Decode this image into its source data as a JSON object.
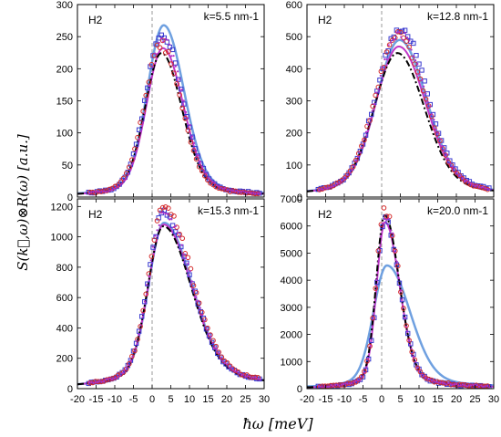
{
  "figure": {
    "ylabel": "S(k⃗,ω)⊗R(ω) [a.u.]",
    "xlabel": "ħω [meV]"
  },
  "colors": {
    "blue_squares": "#3a3ad0",
    "red_circles": "#d42a2a",
    "magenta_points": "#b030c8",
    "light_blue_line": "#6fa0e0",
    "magenta_line": "#c038c8",
    "black_dashdot": "#000000",
    "zero_line": "#808080"
  },
  "chart_data": [
    {
      "type": "scatter",
      "label": "H2",
      "annotation": "k=5.5 nm-1",
      "xlim": [
        -20,
        30
      ],
      "ylim": [
        0,
        300
      ],
      "xticks": [
        -20,
        -15,
        -10,
        -5,
        0,
        5,
        10,
        15,
        20,
        25,
        30
      ],
      "yticks": [
        0,
        50,
        100,
        150,
        200,
        250,
        300
      ],
      "show_x_ticklabels": false,
      "zero_line": true,
      "peak": {
        "center": 2.5,
        "height": 255,
        "width_left": 4.3,
        "width_right": 5.3,
        "tail": 0.1
      },
      "series": [
        {
          "kind": "squares",
          "color": "blue_squares",
          "amp": 1.0,
          "shift": 0.2
        },
        {
          "kind": "circles",
          "color": "red_circles",
          "amp": 0.93,
          "shift": -0.2
        },
        {
          "kind": "dots",
          "color": "magenta_points",
          "amp": 0.96,
          "shift": 0.5
        },
        {
          "kind": "line",
          "color": "light_blue_line",
          "amp": 1.05,
          "shift": 0.6,
          "width": 2.5
        },
        {
          "kind": "line",
          "color": "magenta_line",
          "amp": 0.91,
          "shift": 0.4,
          "width": 2
        },
        {
          "kind": "dashdot",
          "color": "black_dashdot",
          "amp": 0.88,
          "shift": 0.0,
          "width": 2
        }
      ]
    },
    {
      "type": "scatter",
      "label": "H2",
      "annotation": "k=12.8 nm-1",
      "xlim": [
        -20,
        30
      ],
      "ylim": [
        0,
        600
      ],
      "xticks": [
        -20,
        -15,
        -10,
        -5,
        0,
        5,
        10,
        15,
        20,
        25,
        30
      ],
      "yticks": [
        0,
        100,
        200,
        300,
        400,
        500,
        600
      ],
      "show_x_ticklabels": false,
      "zero_line": true,
      "peak": {
        "center": 4.5,
        "height": 510,
        "width_left": 6.0,
        "width_right": 7.0,
        "tail": 0.12
      },
      "series": [
        {
          "kind": "squares",
          "color": "blue_squares",
          "amp": 1.04,
          "shift": 0.3
        },
        {
          "kind": "circles",
          "color": "red_circles",
          "amp": 0.98,
          "shift": 0.0
        },
        {
          "kind": "dots",
          "color": "magenta_points",
          "amp": 1.0,
          "shift": 0.2
        },
        {
          "kind": "line",
          "color": "light_blue_line",
          "amp": 0.96,
          "shift": 0.3,
          "width": 2.5
        },
        {
          "kind": "line",
          "color": "magenta_line",
          "amp": 0.92,
          "shift": 0.1,
          "width": 2
        },
        {
          "kind": "dashdot",
          "color": "black_dashdot",
          "amp": 0.88,
          "shift": -0.3,
          "width": 2
        }
      ]
    },
    {
      "type": "scatter",
      "label": "H2",
      "annotation": "k=15.3 nm-1",
      "xlim": [
        -20,
        30
      ],
      "ylim": [
        0,
        1250
      ],
      "xticks": [
        -20,
        -15,
        -10,
        -5,
        0,
        5,
        10,
        15,
        20,
        25,
        30
      ],
      "yticks": [
        0,
        200,
        400,
        600,
        800,
        1000,
        1200
      ],
      "show_x_ticklabels": true,
      "zero_line": true,
      "peak": {
        "center": 3.0,
        "height": 1150,
        "width_left": 4.0,
        "width_right": 7.2,
        "tail": 0.14
      },
      "series": [
        {
          "kind": "squares",
          "color": "blue_squares",
          "amp": 1.0,
          "shift": 0.0
        },
        {
          "kind": "circles",
          "color": "red_circles",
          "amp": 1.03,
          "shift": 0.2
        },
        {
          "kind": "dots",
          "color": "magenta_points",
          "amp": 1.0,
          "shift": 0.1
        },
        {
          "kind": "line",
          "color": "light_blue_line",
          "amp": 0.95,
          "shift": 0.2,
          "width": 2.5
        },
        {
          "kind": "line",
          "color": "magenta_line",
          "amp": 0.94,
          "shift": 0.1,
          "width": 2
        },
        {
          "kind": "dashdot",
          "color": "black_dashdot",
          "amp": 0.93,
          "shift": 0.0,
          "width": 2
        }
      ]
    },
    {
      "type": "scatter",
      "label": "H2",
      "annotation": "k=20.0 nm-1",
      "xlim": [
        -20,
        30
      ],
      "ylim": [
        0,
        7000
      ],
      "xticks": [
        -20,
        -15,
        -10,
        -5,
        0,
        5,
        10,
        15,
        20,
        25,
        30
      ],
      "yticks": [
        0,
        1000,
        2000,
        3000,
        4000,
        5000,
        6000,
        7000
      ],
      "show_x_ticklabels": true,
      "zero_line": true,
      "peak": {
        "center": 0.8,
        "height": 6400,
        "width_left": 2.2,
        "width_right": 3.8,
        "tail": 0.1
      },
      "series": [
        {
          "kind": "squares",
          "color": "blue_squares",
          "amp": 0.97,
          "shift": 0.2
        },
        {
          "kind": "circles",
          "color": "red_circles",
          "amp": 1.02,
          "shift": 0.0
        },
        {
          "kind": "dots",
          "color": "magenta_points",
          "amp": 1.0,
          "shift": 0.1
        },
        {
          "kind": "line",
          "color": "light_blue_line",
          "amp": 0.71,
          "shift": 0.6,
          "width": 2.5,
          "broad": 1.6
        },
        {
          "kind": "line",
          "color": "magenta_line",
          "amp": 0.96,
          "shift": 0.1,
          "width": 2
        },
        {
          "kind": "dashdot",
          "color": "black_dashdot",
          "amp": 1.0,
          "shift": 0.0,
          "width": 2
        }
      ]
    }
  ]
}
